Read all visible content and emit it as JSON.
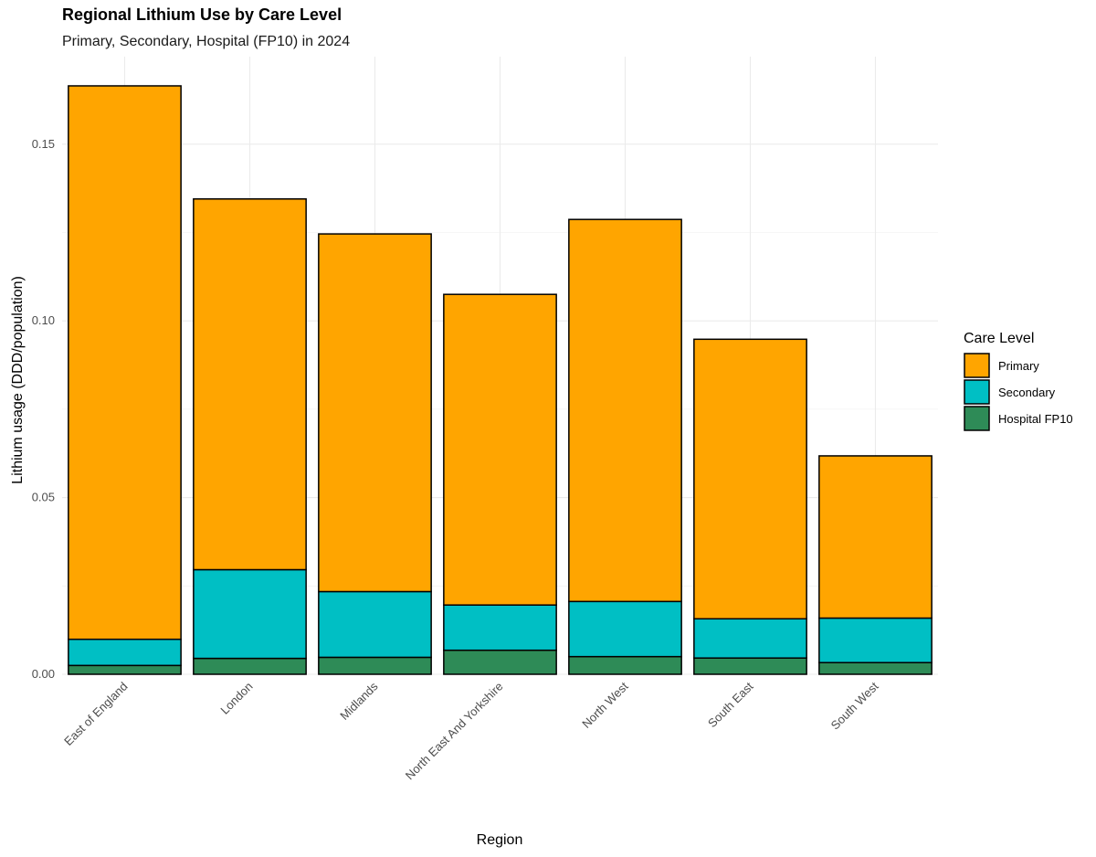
{
  "chart_data": {
    "type": "bar",
    "stacked": true,
    "title": "Regional Lithium Use by Care Level",
    "subtitle": "Primary, Secondary, Hospital (FP10) in 2024",
    "xlabel": "Region",
    "ylabel": "Lithium usage (DDD/population)",
    "ylim": [
      0,
      0.17
    ],
    "yticks": [
      0,
      0.05,
      0.1,
      0.15
    ],
    "ytick_labels": [
      "0.00",
      "0.05",
      "0.10",
      "0.15"
    ],
    "categories": [
      "East of England",
      "London",
      "Midlands",
      "North East And Yorkshire",
      "North West",
      "South East",
      "South West"
    ],
    "series": [
      {
        "name": "Hospital FP10",
        "color": "#2e8b57",
        "values": [
          0.0025,
          0.0045,
          0.0048,
          0.0068,
          0.005,
          0.0046,
          0.0033
        ]
      },
      {
        "name": "Secondary",
        "color": "#00bfc4",
        "values": [
          0.0074,
          0.0251,
          0.0186,
          0.0128,
          0.0156,
          0.0111,
          0.0126
        ]
      },
      {
        "name": "Primary",
        "color": "#ffa500",
        "values": [
          0.1566,
          0.1049,
          0.1012,
          0.0879,
          0.1081,
          0.0791,
          0.0459
        ]
      }
    ],
    "legend": {
      "title": "Care Level",
      "position": "right",
      "entries": [
        "Primary",
        "Secondary",
        "Hospital FP10"
      ],
      "colors": [
        "#ffa500",
        "#00bfc4",
        "#2e8b57"
      ]
    },
    "grid": true
  }
}
